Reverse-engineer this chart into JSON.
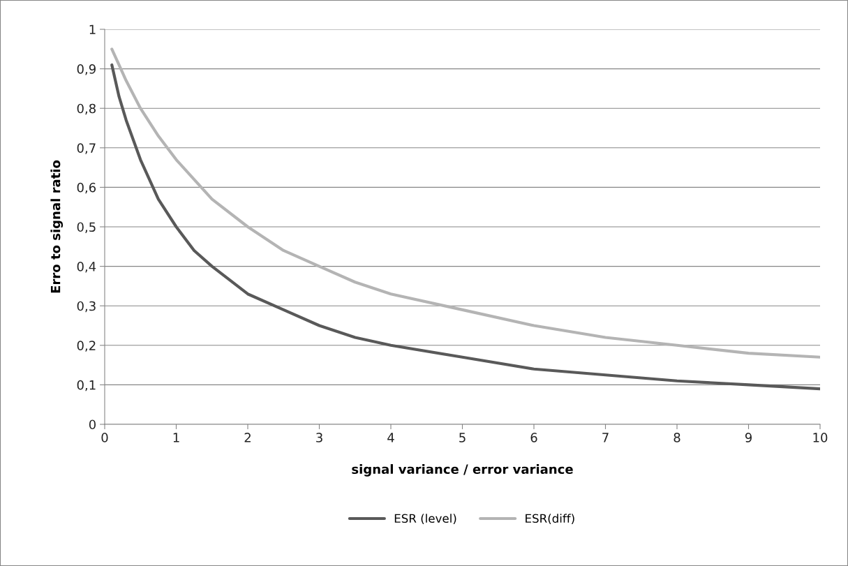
{
  "chart_data": {
    "type": "line",
    "xlabel": "signal variance / error variance",
    "ylabel": "Erro to signal ratio",
    "x": [
      0.1,
      0.2,
      0.3,
      0.5,
      0.75,
      1,
      1.25,
      1.5,
      2,
      2.5,
      3,
      3.5,
      4,
      5,
      6,
      7,
      8,
      9,
      10
    ],
    "series": [
      {
        "name": "ESR (level)",
        "color": "#595959",
        "values": [
          0.91,
          0.83,
          0.77,
          0.67,
          0.57,
          0.5,
          0.44,
          0.4,
          0.33,
          0.29,
          0.25,
          0.22,
          0.2,
          0.17,
          0.14,
          0.125,
          0.11,
          0.1,
          0.09
        ]
      },
      {
        "name": "ESR(diff)",
        "color": "#b4b4b4",
        "values": [
          0.95,
          0.91,
          0.87,
          0.8,
          0.73,
          0.67,
          0.62,
          0.57,
          0.5,
          0.44,
          0.4,
          0.36,
          0.33,
          0.29,
          0.25,
          0.22,
          0.2,
          0.18,
          0.17
        ]
      }
    ],
    "xlim": [
      0,
      10
    ],
    "xticks": [
      0,
      1,
      2,
      3,
      4,
      5,
      6,
      7,
      8,
      9,
      10
    ],
    "ylim": [
      0,
      1
    ],
    "yticks": [
      0,
      {
        "value": 0.1,
        "label": "0,1"
      },
      {
        "value": 0.2,
        "label": "0,2"
      },
      {
        "value": 0.3,
        "label": "0,3"
      },
      {
        "value": 0.4,
        "label": "0,4"
      },
      {
        "value": 0.5,
        "label": "0,5"
      },
      {
        "value": 0.6,
        "label": "0,6"
      },
      {
        "value": 0.7,
        "label": "0,7"
      },
      {
        "value": 0.8,
        "label": "0,8"
      },
      {
        "value": 0.9,
        "label": "0,9"
      },
      1
    ],
    "grid": "y",
    "legend": "bottom",
    "marker": "none",
    "line_style": "solid"
  }
}
